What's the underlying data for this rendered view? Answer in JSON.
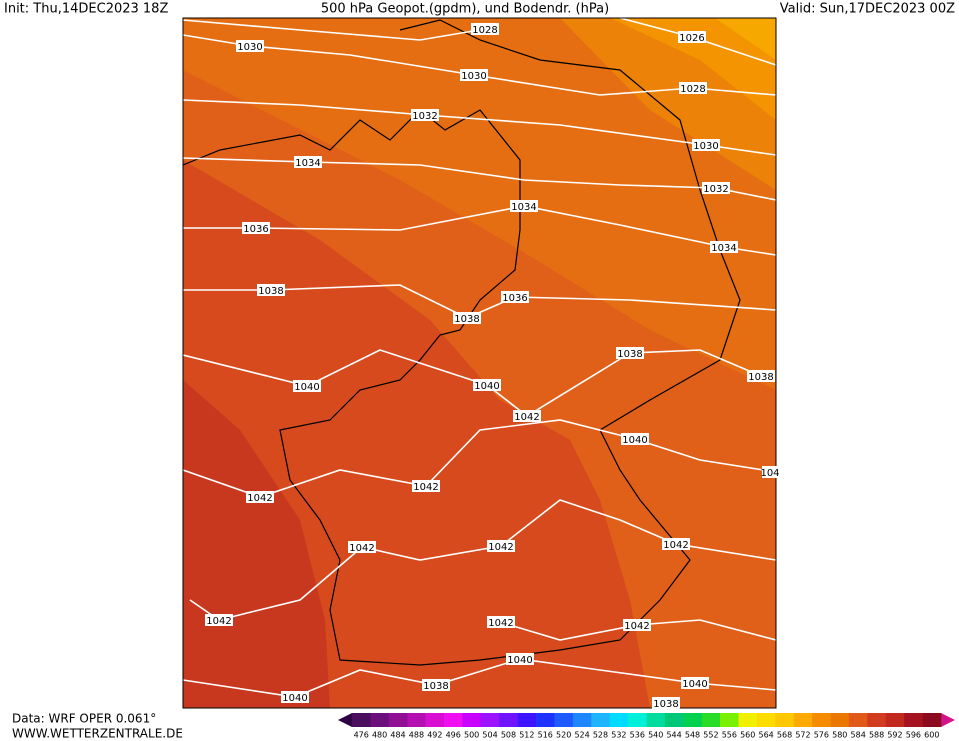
{
  "header": {
    "init": "Init: Thu,14DEC2023 18Z",
    "title": "500 hPa Geopot.(gpdm), und Bodendr. (hPa)",
    "valid": "Valid: Sun,17DEC2023 00Z"
  },
  "isobar_labels": [
    "1028",
    "1026",
    "1030",
    "1030",
    "1028",
    "1032",
    "1030",
    "1034",
    "1032",
    "1034",
    "1036",
    "1034",
    "1038",
    "1036",
    "1038",
    "1038",
    "1038",
    "1040",
    "1040",
    "1042",
    "1040",
    "104",
    "1042",
    "1042",
    "1042",
    "1042",
    "1042",
    "1042",
    "1042",
    "1042",
    "1040",
    "1038",
    "1040",
    "1040",
    "1038"
  ],
  "colorbar": {
    "labels": [
      476,
      480,
      484,
      488,
      492,
      496,
      500,
      504,
      508,
      512,
      516,
      520,
      524,
      528,
      532,
      536,
      540,
      544,
      548,
      552,
      556,
      560,
      564,
      568,
      572,
      576,
      580,
      584,
      588,
      592,
      596,
      600
    ],
    "colors": [
      "#4b0f5e",
      "#6b0f7a",
      "#900f95",
      "#b40fb0",
      "#d80fd0",
      "#f00ff0",
      "#c800ff",
      "#9a14ff",
      "#6e14ff",
      "#3c14ff",
      "#1e32ff",
      "#1e5aff",
      "#1e87ff",
      "#1eb4ff",
      "#00dcff",
      "#00f0dc",
      "#00dca0",
      "#00c878",
      "#00d250",
      "#28dc28",
      "#78f000",
      "#f0f000",
      "#ffdc00",
      "#ffc800",
      "#ffaa00",
      "#f58c00",
      "#eb7800",
      "#e15a1a",
      "#d23c1e",
      "#c3281e",
      "#a5141e",
      "#8c0a1e"
    ]
  },
  "footer": {
    "data": "Data: WRF OPER 0.061°",
    "site": "WWW.WETTERZENTRALE.DE"
  }
}
